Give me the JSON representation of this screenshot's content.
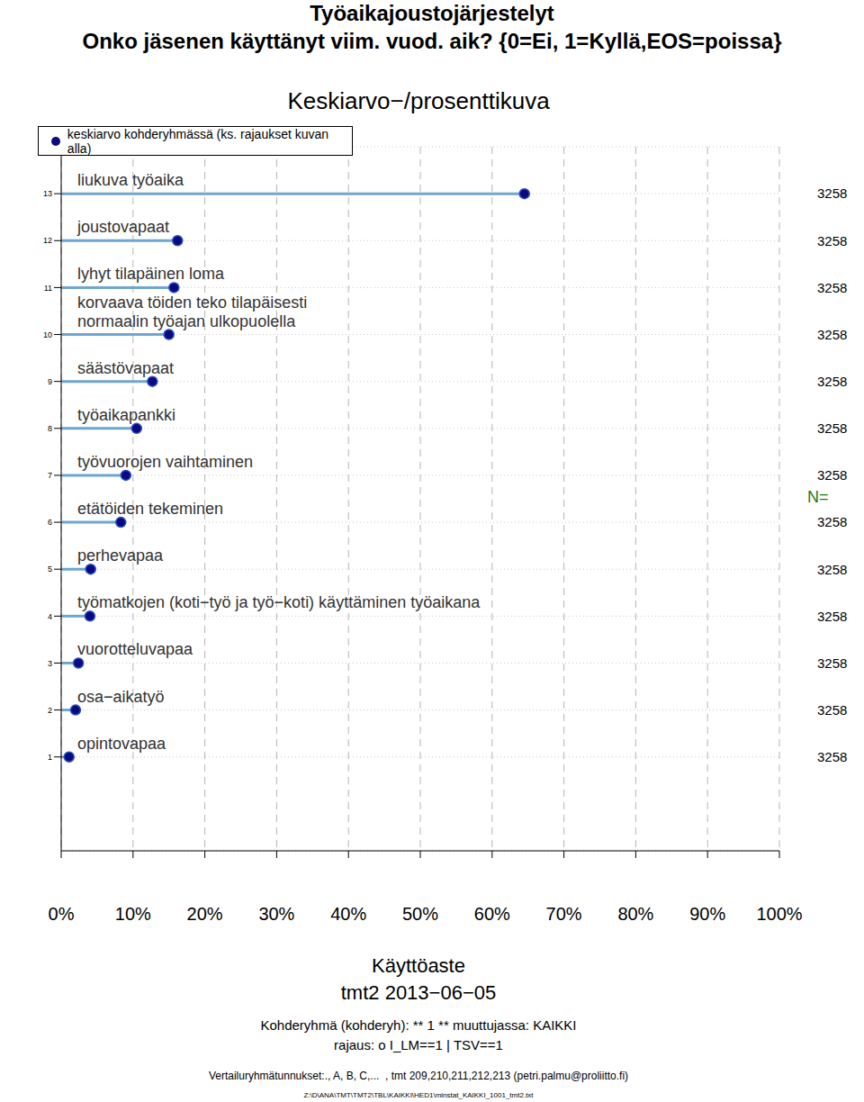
{
  "chart_data": {
    "type": "dot",
    "title": "Työaikajoustojärjestelyt",
    "subtitle": "Onko jäsenen käyttänyt viim. vuod. aik? {0=Ei, 1=Kyllä,EOS=poissa}",
    "heading": "Keskiarvo−/prosenttikuva",
    "orientation": "horizontal",
    "categories": [
      "liukuva työaika",
      "joustovapaat",
      "lyhyt tilapäinen loma",
      "korvaava töiden teko tilapäisesti\nnormaalin työajan ulkopuolella",
      "säästövapaat",
      "työaikapankki",
      "työvuorojen vaihtaminen",
      "etätöiden tekeminen",
      "perhevapaa",
      "työmatkojen (koti−työ ja työ−koti) käyttäminen työaikana",
      "vuorotteluvapaa",
      "osa−aikatyö",
      "opintovapaa"
    ],
    "y": [
      13,
      12,
      11,
      10,
      9,
      8,
      7,
      6,
      5,
      4,
      3,
      2,
      1
    ],
    "series": [
      {
        "name": "keskiarvo kohderyhmässä (ks. rajaukset kuvan alla)",
        "color": "#0a0a80",
        "values": [
          64.5,
          16.2,
          15.7,
          15.0,
          12.7,
          10.5,
          9.0,
          8.3,
          4.1,
          4.0,
          2.4,
          2.0,
          1.1
        ]
      }
    ],
    "n_label": "N=",
    "n": [
      3258,
      3258,
      3258,
      3258,
      3258,
      3258,
      3258,
      3258,
      3258,
      3258,
      3258,
      3258,
      3258
    ],
    "xlim": [
      0,
      100
    ],
    "xticks": [
      {
        "value": 0,
        "label": "0%"
      },
      {
        "value": 10,
        "label": "10%"
      },
      {
        "value": 20,
        "label": "20%"
      },
      {
        "value": 30,
        "label": "30%"
      },
      {
        "value": 40,
        "label": "40%"
      },
      {
        "value": 50,
        "label": "50%"
      },
      {
        "value": 60,
        "label": "60%"
      },
      {
        "value": 70,
        "label": "70%"
      },
      {
        "value": 80,
        "label": "80%"
      },
      {
        "value": 90,
        "label": "90%"
      },
      {
        "value": 100,
        "label": "100%"
      }
    ],
    "ylim": [
      -1,
      14
    ],
    "yticks": [
      1,
      2,
      3,
      4,
      5,
      6,
      7,
      8,
      9,
      10,
      11,
      12,
      13
    ],
    "grid": true,
    "x_label": "Käyttöaste",
    "notes": [
      "tmt2 2013−06−05",
      "Kohderyhmä (kohderyh): ** 1 ** muuttujassa: KAIKKI",
      "rajaus: o I_LM==1 | TSV==1",
      "Vertailuryhmätunnukset:., A, B, C,...  , tmt 209,210,211,212,213 (petri.palmu@proliitto.fi)",
      "Z:\\D\\ANA\\TMT\\TMT2\\TBL\\KAIKKI\\HED1\\minstat_KAIKKI_1001_tmt2.txt"
    ]
  }
}
